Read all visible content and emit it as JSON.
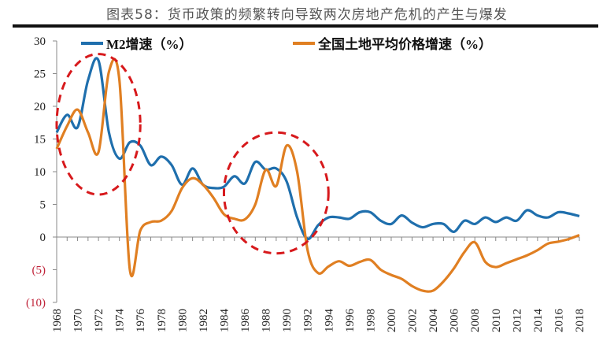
{
  "title": "图表58：货币政策的频繁转向导致两次房地产危机的产生与爆发",
  "chart_data": {
    "type": "line",
    "title": "图表58：货币政策的频繁转向导致两次房地产危机的产生与爆发",
    "x": [
      1968,
      1969,
      1970,
      1971,
      1972,
      1973,
      1974,
      1975,
      1976,
      1977,
      1978,
      1979,
      1980,
      1981,
      1982,
      1983,
      1984,
      1985,
      1986,
      1987,
      1988,
      1989,
      1990,
      1991,
      1992,
      1993,
      1994,
      1995,
      1996,
      1997,
      1998,
      1999,
      2000,
      2001,
      2002,
      2003,
      2004,
      2005,
      2006,
      2007,
      2008,
      2009,
      2010,
      2011,
      2012,
      2013,
      2014,
      2015,
      2016,
      2017,
      2018
    ],
    "x_tick_labels": [
      "1968",
      "1970",
      "1972",
      "1974",
      "1976",
      "1978",
      "1980",
      "1982",
      "1984",
      "1986",
      "1988",
      "1990",
      "1992",
      "1994",
      "1996",
      "1998",
      "2000",
      "2002",
      "2004",
      "2006",
      "2008",
      "2010",
      "2012",
      "2014",
      "2016",
      "2018"
    ],
    "y_tick_labels": [
      "30",
      "25",
      "20",
      "15",
      "10",
      "5",
      "0",
      "(5)",
      "(10)"
    ],
    "y_ticks": [
      30,
      25,
      20,
      15,
      10,
      5,
      0,
      -5,
      -10
    ],
    "ylim": [
      -10,
      30
    ],
    "xlim": [
      1968,
      2018
    ],
    "grid": false,
    "legend_position": "top",
    "series": [
      {
        "name": "M2增速（%）",
        "color": "#1f6fad",
        "values": [
          16,
          18.7,
          16.8,
          24,
          27,
          16,
          12,
          14.5,
          14,
          11,
          12.3,
          11,
          8,
          10.5,
          8,
          7.5,
          7.7,
          9.3,
          8.2,
          11.5,
          10.3,
          10.5,
          8.5,
          3,
          -0.3,
          1.8,
          3,
          3,
          2.8,
          3.8,
          3.8,
          2.5,
          2,
          3.3,
          2.2,
          1.5,
          2,
          2,
          0.8,
          2.5,
          2,
          3,
          2.3,
          3,
          2.5,
          4.1,
          3.3,
          3,
          3.8,
          3.6,
          3.2
        ]
      },
      {
        "name": "全国土地平均价格增速（%）",
        "color": "#e07f22",
        "values": [
          13.5,
          17,
          19.5,
          16,
          13,
          25.3,
          24,
          -5,
          1,
          2.3,
          2.5,
          4,
          7.5,
          9,
          8,
          6,
          3.5,
          2.8,
          2.7,
          5,
          10.3,
          7.8,
          14,
          10,
          -2,
          -5.5,
          -4.5,
          -3.7,
          -4.4,
          -3.8,
          -3.5,
          -5,
          -5.8,
          -6.4,
          -7.5,
          -8.2,
          -8.2,
          -6.8,
          -4.8,
          -2.3,
          -0.8,
          -3.8,
          -4.6,
          -4,
          -3.4,
          -2.8,
          -2,
          -1,
          -0.7,
          -0.3,
          0.3
        ]
      }
    ],
    "annotations": [
      {
        "shape": "dashed-ellipse",
        "color": "#d7191c",
        "x_range": [
          1968,
          1976
        ],
        "y_range": [
          6.5,
          28
        ]
      },
      {
        "shape": "dashed-ellipse",
        "color": "#d7191c",
        "x_range": [
          1984,
          1994
        ],
        "y_range": [
          -2.5,
          16
        ]
      }
    ],
    "negative_label_color": "#c0243a"
  }
}
